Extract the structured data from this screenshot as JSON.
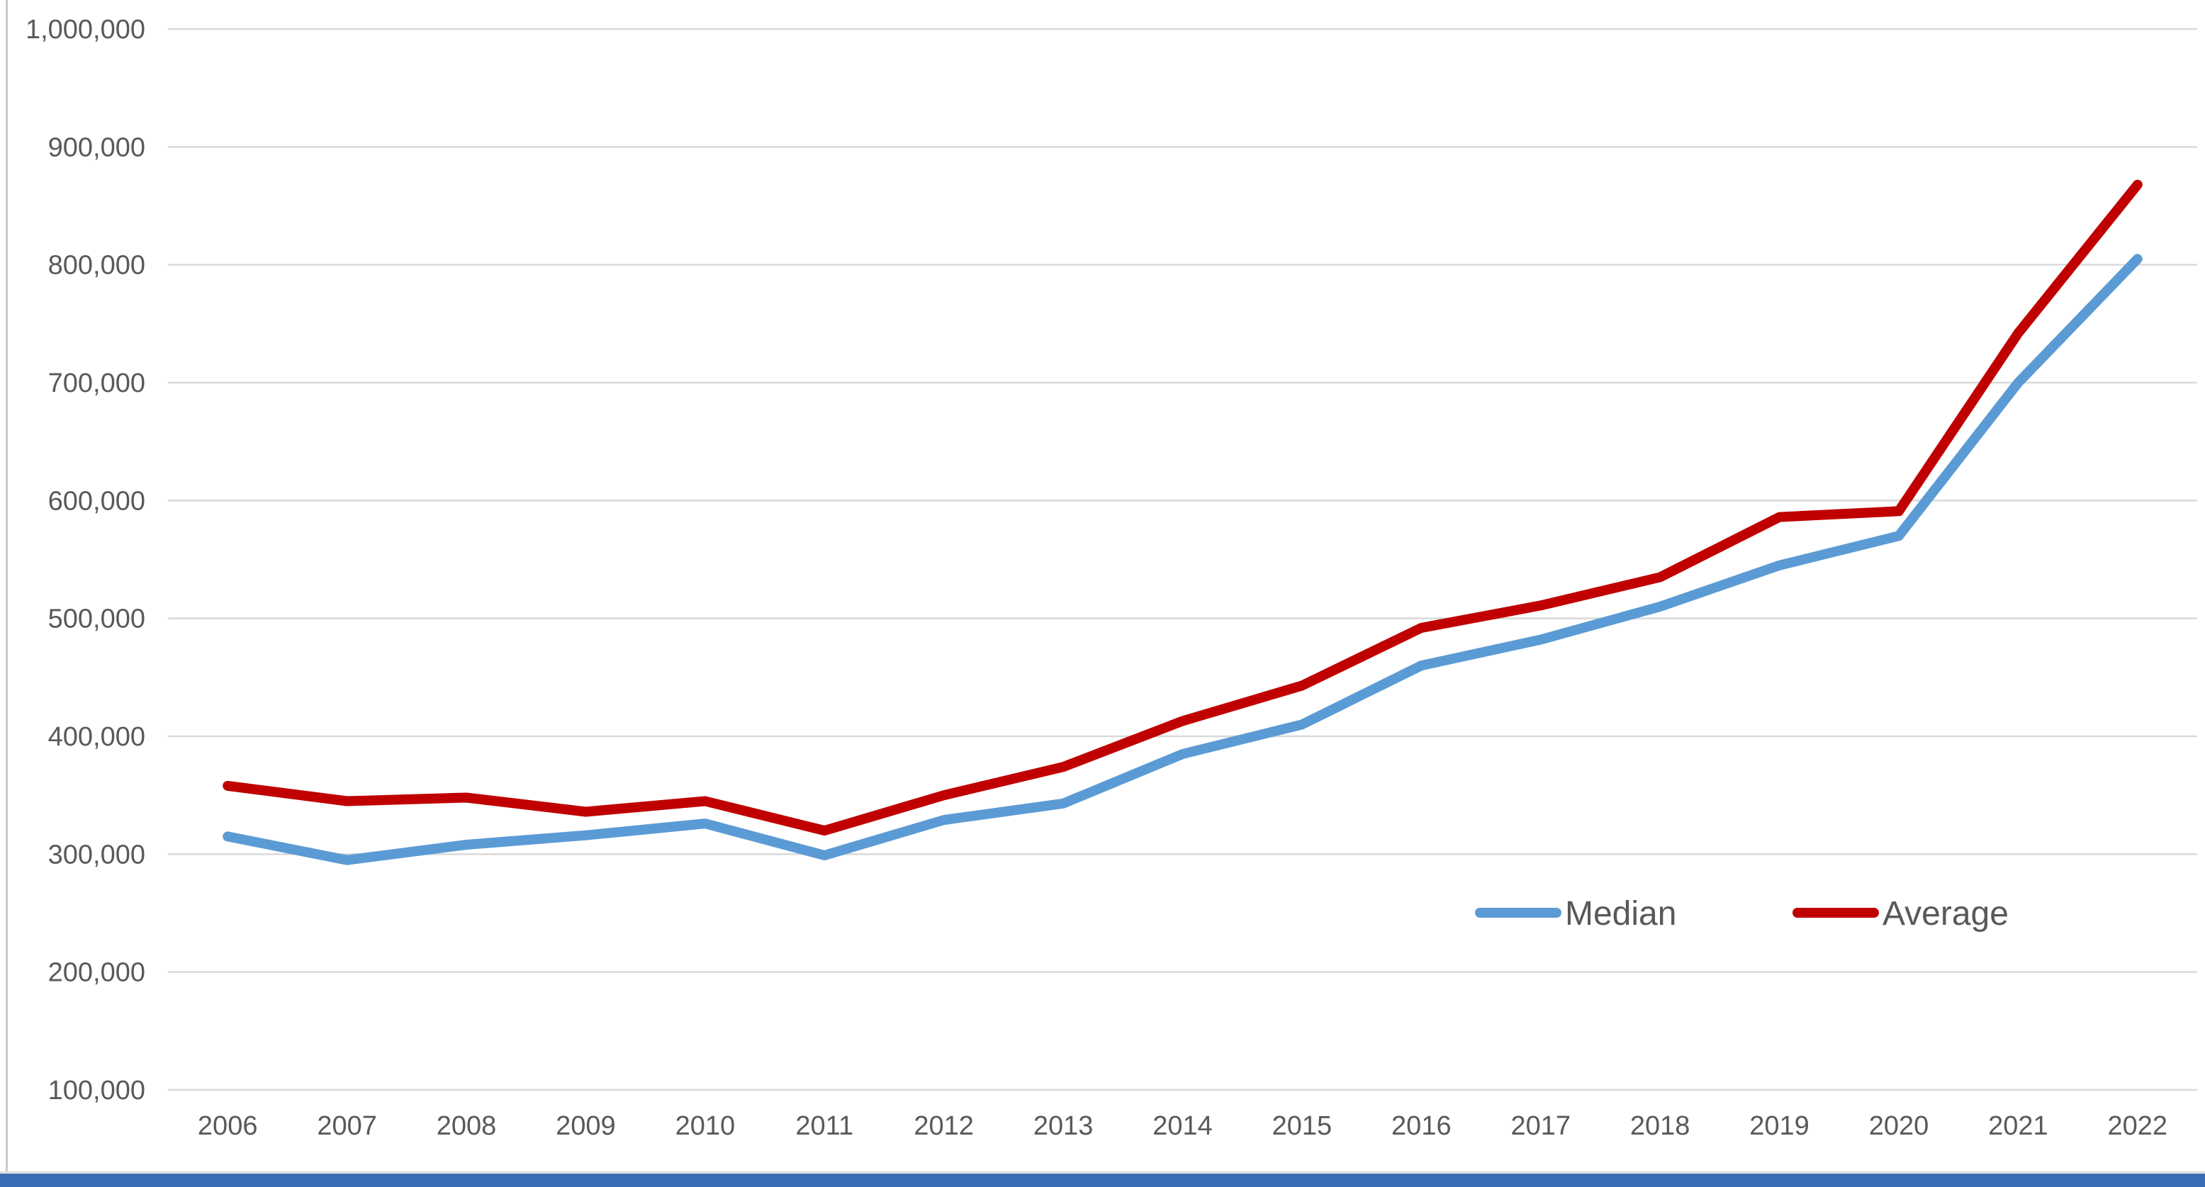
{
  "chart_data": {
    "type": "line",
    "title": "",
    "xlabel": "",
    "ylabel": "",
    "categories": [
      "2006",
      "2007",
      "2008",
      "2009",
      "2010",
      "2011",
      "2012",
      "2013",
      "2014",
      "2015",
      "2016",
      "2017",
      "2018",
      "2019",
      "2020",
      "2021",
      "2022"
    ],
    "series": [
      {
        "name": "Median",
        "color": "#5B9BD5",
        "values": [
          315000,
          295000,
          308000,
          316000,
          326000,
          299000,
          329000,
          343000,
          385000,
          410000,
          460000,
          482000,
          510000,
          545000,
          570000,
          700000,
          805000
        ]
      },
      {
        "name": "Average",
        "color": "#C00000",
        "values": [
          358000,
          345000,
          348000,
          336000,
          345000,
          320000,
          350000,
          374000,
          413000,
          443000,
          492000,
          511000,
          535000,
          586000,
          591000,
          742000,
          868000
        ]
      }
    ],
    "ylim": [
      100000,
      1000000
    ],
    "ytick_step": 100000,
    "ytick_labels": [
      "100,000",
      "200,000",
      "300,000",
      "400,000",
      "500,000",
      "600,000",
      "700,000",
      "800,000",
      "900,000",
      "1,000,000"
    ],
    "grid": "horizontal",
    "legend_position": "inside-lower-right"
  },
  "legend": {
    "items": [
      {
        "label": "Median",
        "color": "#5B9BD5"
      },
      {
        "label": "Average",
        "color": "#C00000"
      }
    ]
  },
  "colors": {
    "background": "#FFFFFF",
    "gridline": "#D9D9D9",
    "axis_text": "#595959",
    "median_line": "#5B9BD5",
    "average_line": "#C00000",
    "left_edge": "#C9C9C9",
    "bottom_bar": "#3B6DB5"
  }
}
